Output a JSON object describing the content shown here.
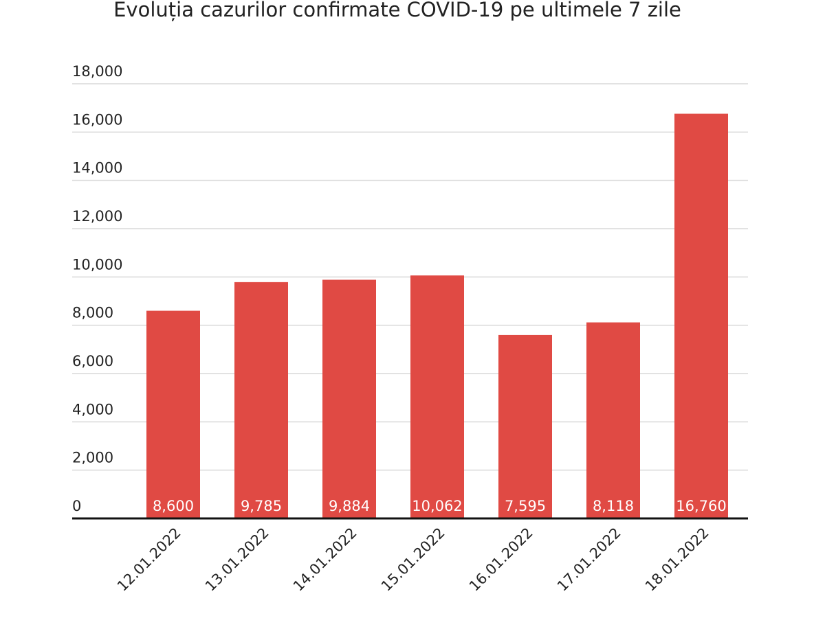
{
  "chart_data": {
    "type": "bar",
    "title": "Evoluția cazurilor confirmate COVID-19 pe ultimele 7 zile",
    "categories": [
      "12.01.2022",
      "13.01.2022",
      "14.01.2022",
      "15.01.2022",
      "16.01.2022",
      "17.01.2022",
      "18.01.2022"
    ],
    "values": [
      8600,
      9785,
      9884,
      10062,
      7595,
      8118,
      16760
    ],
    "value_labels": [
      "8,600",
      "9,785",
      "9,884",
      "10,062",
      "7,595",
      "8,118",
      "16,760"
    ],
    "color": "#e04a44",
    "ylim": [
      0,
      18000
    ],
    "yticks": [
      0,
      {
        "value": 2000,
        "label": "2,000"
      },
      {
        "value": 4000,
        "label": "4,000"
      },
      {
        "value": 6000,
        "label": "6,000"
      },
      {
        "value": 8000,
        "label": "8,000"
      },
      {
        "value": 10000,
        "label": "10,000"
      },
      {
        "value": 12000,
        "label": "12,000"
      },
      {
        "value": 14000,
        "label": "14,000"
      },
      {
        "value": 16000,
        "label": "16,000"
      },
      {
        "value": 18000,
        "label": "18,000"
      }
    ],
    "grid": true
  }
}
